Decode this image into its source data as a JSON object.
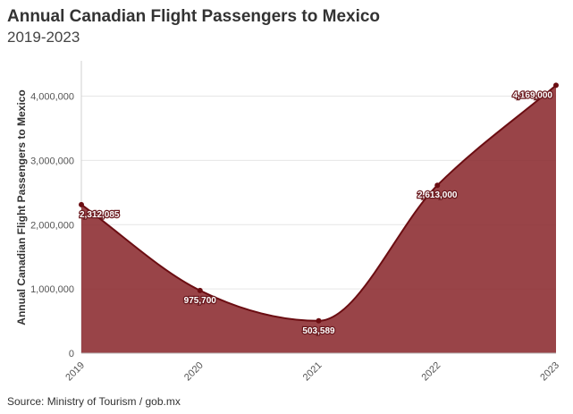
{
  "chart_data": {
    "type": "area",
    "title": "Annual Canadian Flight Passengers to Mexico",
    "subtitle": "2019-2023",
    "xlabel": "",
    "ylabel": "Annual Canadian Flight Passengers to Mexico",
    "categories": [
      "2019",
      "2020",
      "2021",
      "2022",
      "2023"
    ],
    "values": [
      2312085,
      975700,
      503589,
      2613000,
      4169000
    ],
    "data_labels": [
      "2,312,085",
      "975,700",
      "503,589",
      "2,613,000",
      "4,169,000"
    ],
    "ylim": [
      0,
      4550000
    ],
    "yticks": [
      0,
      1000000,
      2000000,
      3000000,
      4000000
    ],
    "ytick_labels": [
      "0",
      "1,000,000",
      "2,000,000",
      "3,000,000",
      "4,000,000"
    ],
    "grid": true,
    "legend": "none",
    "colors": {
      "fill": "#8b2a2f",
      "line": "#6b0d12"
    },
    "source": "Source: Ministry of Tourism / gob.mx"
  }
}
